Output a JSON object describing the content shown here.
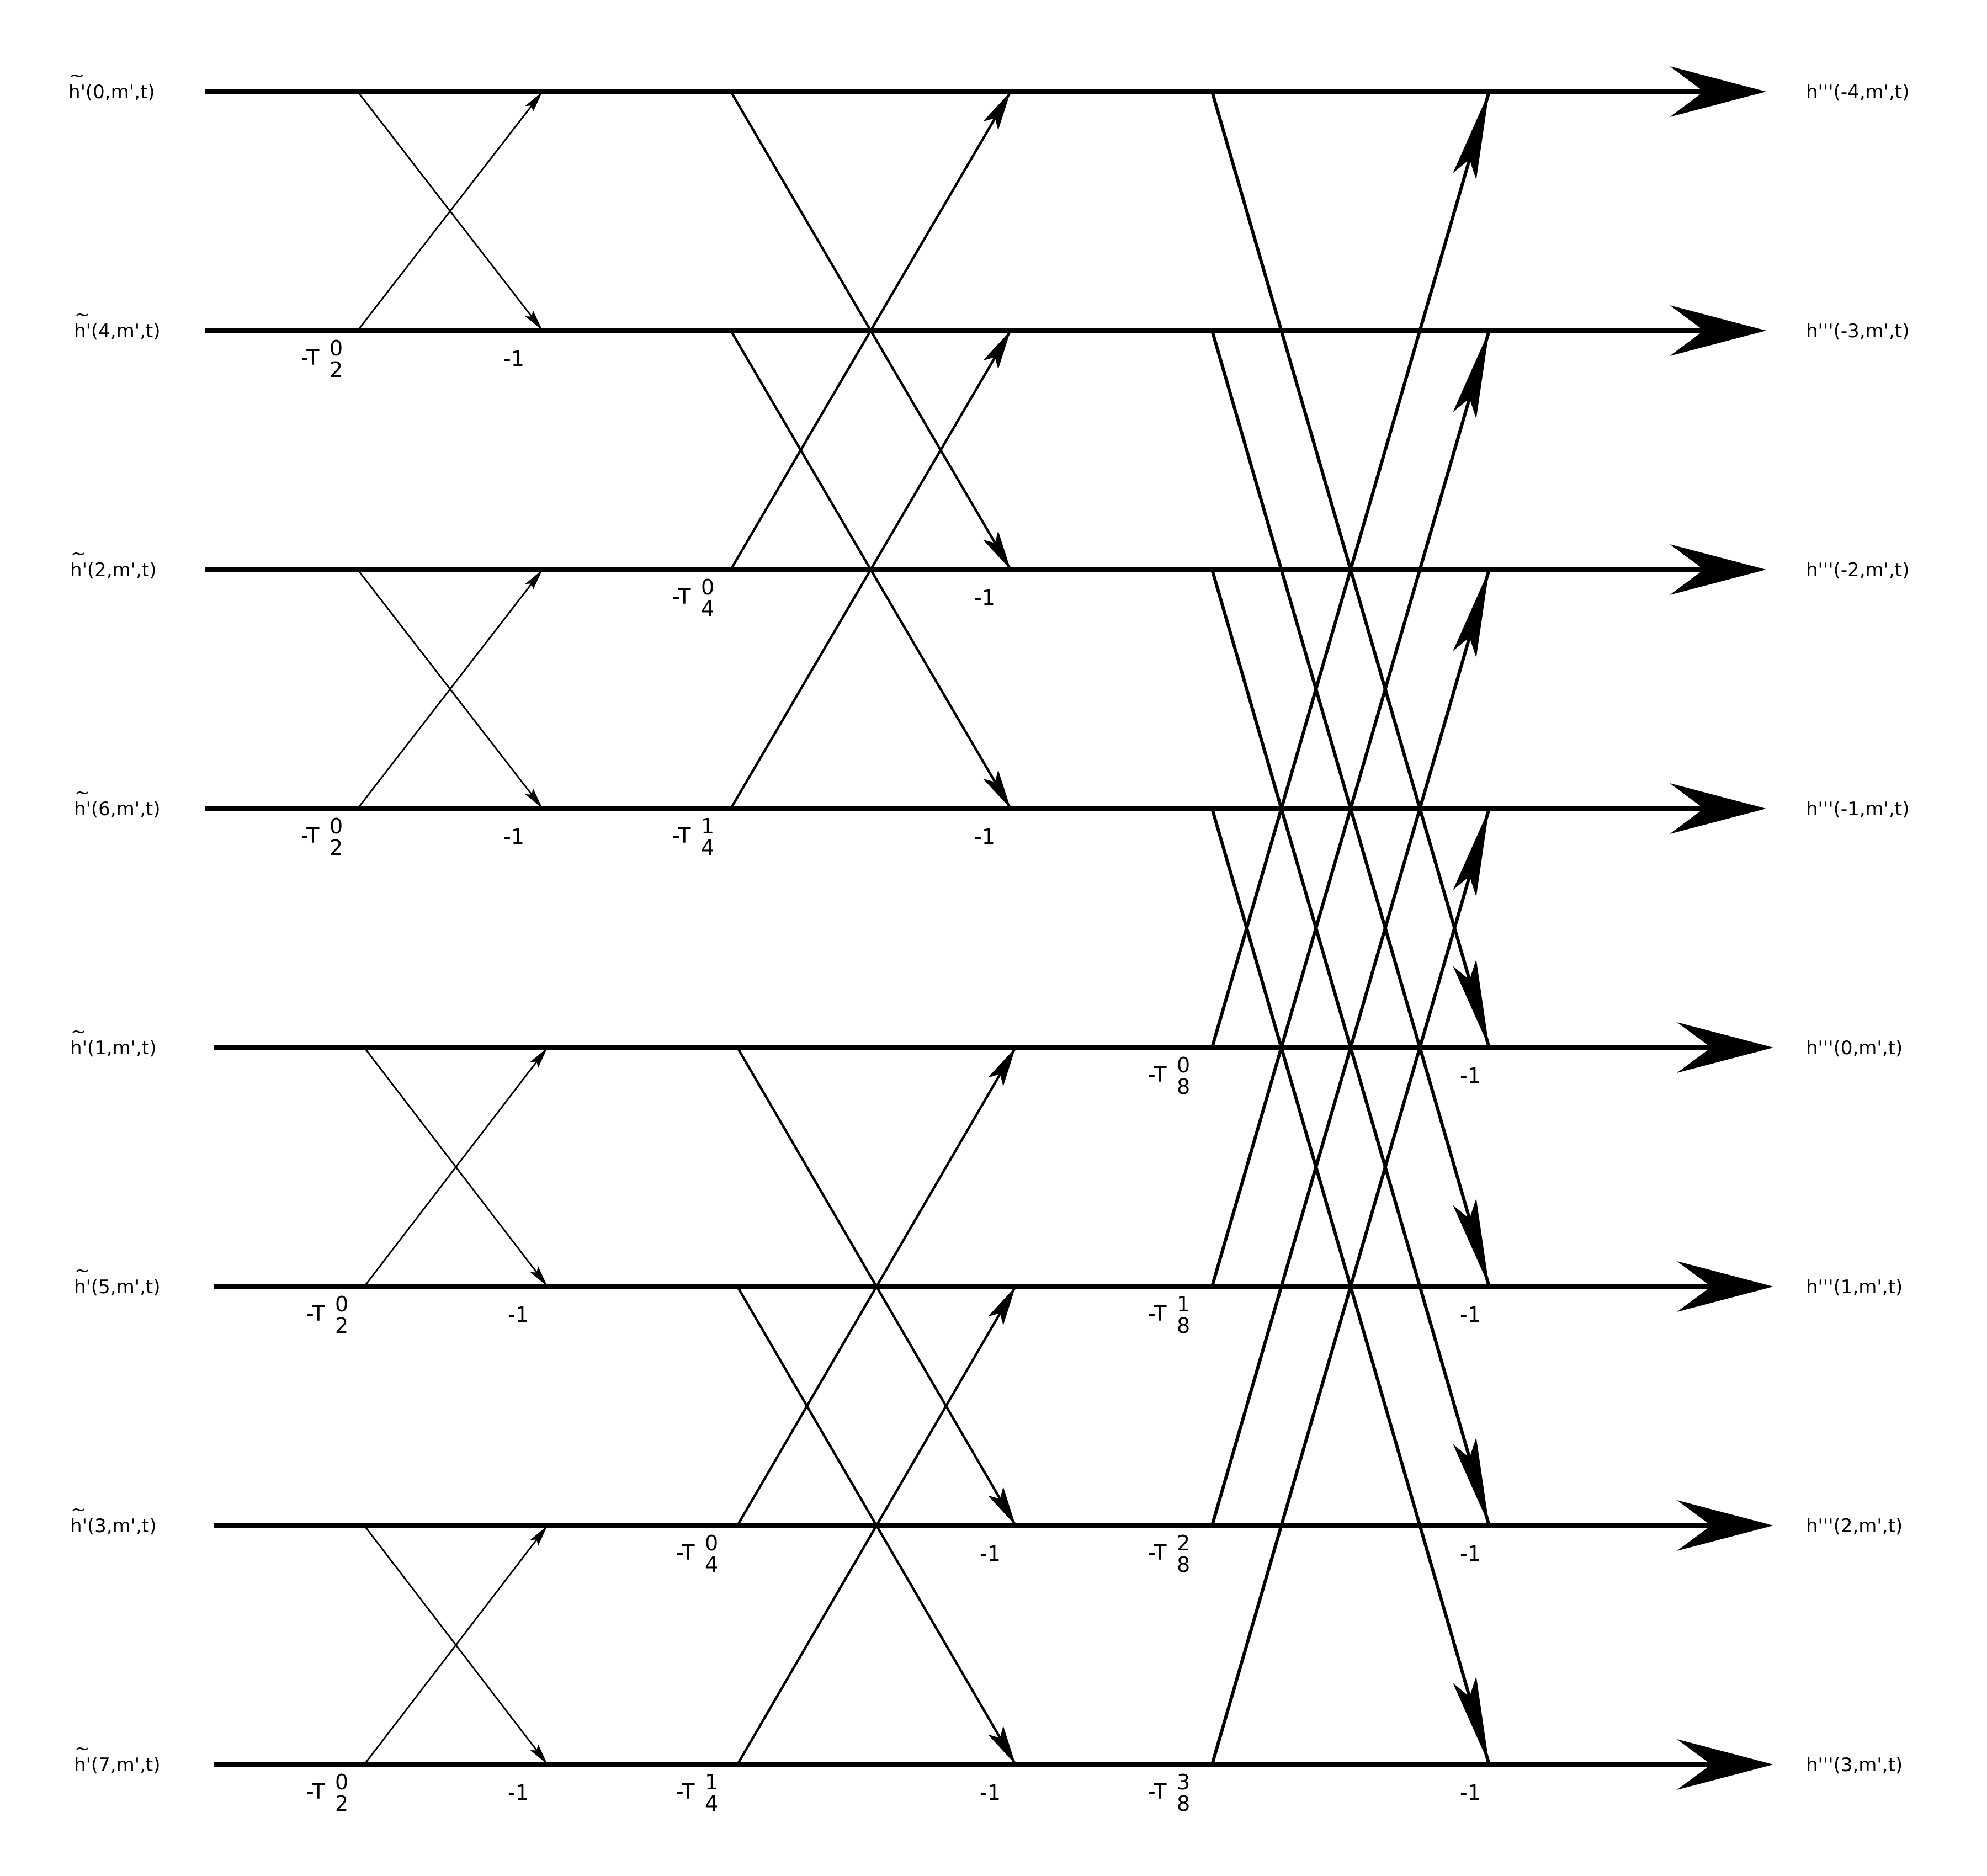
{
  "inputs": [
    {
      "fn": "h",
      "args": "'(0,m',t)"
    },
    {
      "fn": "h",
      "args": "'(4,m',t)"
    },
    {
      "fn": "h",
      "args": "'(2,m',t)"
    },
    {
      "fn": "h",
      "args": "'(6,m',t)"
    },
    {
      "fn": "h",
      "args": "'(1,m',t)"
    },
    {
      "fn": "h",
      "args": "'(5,m',t)"
    },
    {
      "fn": "h",
      "args": "'(3,m',t)"
    },
    {
      "fn": "h",
      "args": "'(7,m',t)"
    }
  ],
  "input_tilde": "~",
  "outputs": [
    "h'''(-4,m',t)",
    "h'''(-3,m',t)",
    "h'''(-2,m',t)",
    "h'''(-1,m',t)",
    "h'''(0,m',t)",
    "h'''(1,m',t)",
    "h'''(2,m',t)",
    "h'''(3,m',t)"
  ],
  "stages": [
    {
      "stage": 1,
      "span": 2,
      "twiddles": [
        {
          "row": 1,
          "base": "-T",
          "sub": "2",
          "sup": "0"
        },
        {
          "row": 3,
          "base": "-T",
          "sub": "2",
          "sup": "0"
        },
        {
          "row": 5,
          "base": "-T",
          "sub": "2",
          "sup": "0"
        },
        {
          "row": 7,
          "base": "-T",
          "sub": "2",
          "sup": "0"
        }
      ],
      "negations": [
        {
          "row": 1,
          "text": "-1"
        },
        {
          "row": 3,
          "text": "-1"
        },
        {
          "row": 5,
          "text": "-1"
        },
        {
          "row": 7,
          "text": "-1"
        }
      ]
    },
    {
      "stage": 2,
      "span": 4,
      "twiddles": [
        {
          "row": 2,
          "base": "-T",
          "sub": "4",
          "sup": "0"
        },
        {
          "row": 3,
          "base": "-T",
          "sub": "4",
          "sup": "1"
        },
        {
          "row": 6,
          "base": "-T",
          "sub": "4",
          "sup": "0"
        },
        {
          "row": 7,
          "base": "-T",
          "sub": "4",
          "sup": "1"
        }
      ],
      "negations": [
        {
          "row": 2,
          "text": "-1"
        },
        {
          "row": 3,
          "text": "-1"
        },
        {
          "row": 6,
          "text": "-1"
        },
        {
          "row": 7,
          "text": "-1"
        }
      ]
    },
    {
      "stage": 3,
      "span": 8,
      "twiddles": [
        {
          "row": 4,
          "base": "-T",
          "sub": "8",
          "sup": "0"
        },
        {
          "row": 5,
          "base": "-T",
          "sub": "8",
          "sup": "1"
        },
        {
          "row": 6,
          "base": "-T",
          "sub": "8",
          "sup": "2"
        },
        {
          "row": 7,
          "base": "-T",
          "sub": "8",
          "sup": "3"
        }
      ],
      "negations": [
        {
          "row": 4,
          "text": "-1"
        },
        {
          "row": 5,
          "text": "-1"
        },
        {
          "row": 6,
          "text": "-1"
        },
        {
          "row": 7,
          "text": "-1"
        }
      ]
    }
  ]
}
